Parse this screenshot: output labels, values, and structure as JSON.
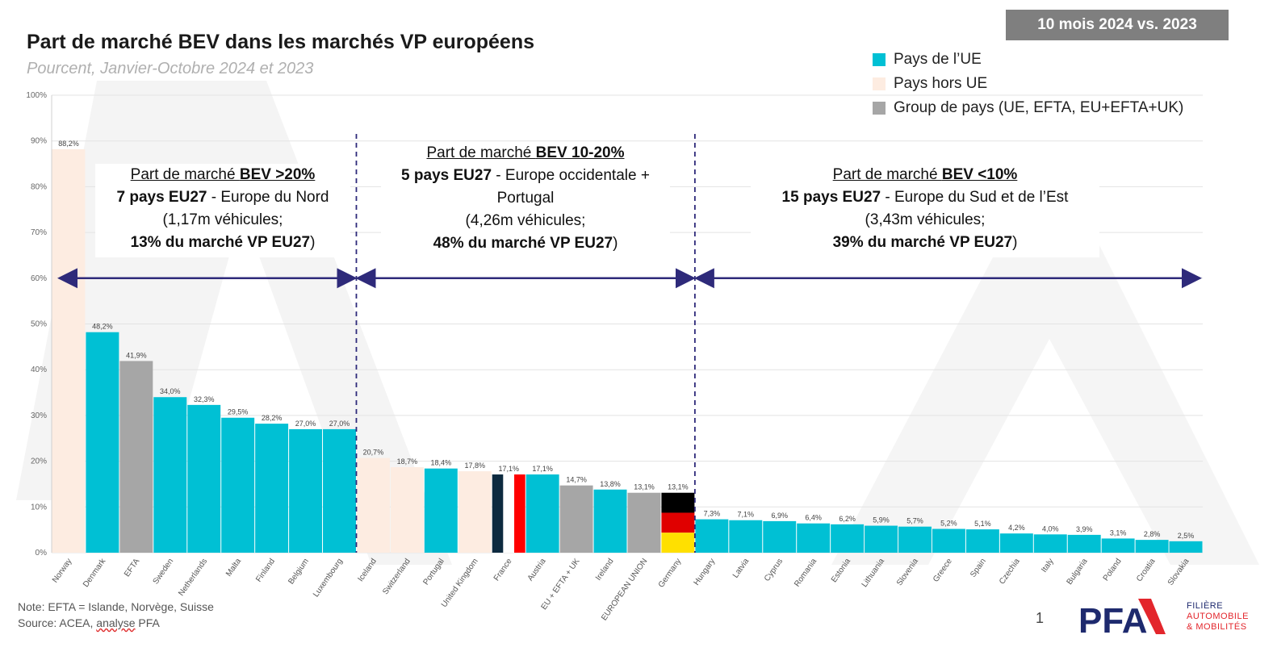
{
  "title": "Part de marché BEV dans les marchés VP européens",
  "subtitle": "Pourcent, Janvier-Octobre 2024 et 2023",
  "period_badge": "10 mois 2024 vs. 2023",
  "legend": [
    {
      "label": "Pays de l’UE",
      "color": "#00c0d4"
    },
    {
      "label": "Pays hors UE",
      "color": "#fdece1"
    },
    {
      "label": "Group de pays (UE, EFTA, EU+EFTA+UK)",
      "color": "#a6a6a6"
    }
  ],
  "zones": [
    {
      "heading_prefix": "Part de marché ",
      "heading_bold": "BEV >20%",
      "line2_bold": "7 pays EU27",
      "line2_rest": " - Europe du Nord",
      "line3": "(1,17m véhicules;",
      "line4_bold": "13% du marché VP EU27",
      "line4_rest": ")"
    },
    {
      "heading_prefix": "Part de marché ",
      "heading_bold": "BEV 10-20%",
      "line2_bold": "5 pays EU27",
      "line2_rest": " - Europe occidentale +",
      "line2b": "Portugal",
      "line3": "(4,26m véhicules;",
      "line4_bold": "48% du marché VP EU27",
      "line4_rest": ")"
    },
    {
      "heading_prefix": "Part de marché ",
      "heading_bold": "BEV <10%",
      "line2_bold": "15 pays EU27",
      "line2_rest": " - Europe du Sud et de l’Est",
      "line3": "(3,43m véhicules;",
      "line4_bold": "39% du marché VP EU27",
      "line4_rest": ")"
    }
  ],
  "colors": {
    "eu": "#00c0d4",
    "non_eu": "#fdece1",
    "group": "#a6a6a6",
    "arrow": "#2e2a7a",
    "grid": "#e3e3e3",
    "axis_text": "#666666",
    "france_blue": "#0d2a3f",
    "france_red": "#ff0000",
    "germany_black": "#000000",
    "germany_red": "#e00000",
    "germany_gold": "#ffe000"
  },
  "chart_data": {
    "type": "bar",
    "categories": [
      "Norway",
      "Denmark",
      "EFTA",
      "Sweden",
      "Netherlands",
      "Malta",
      "Finland",
      "Belgium",
      "Luxembourg",
      "Iceland",
      "Switzerland",
      "Portugal",
      "United Kingdom",
      "France",
      "Austria",
      "EU + EFTA + UK",
      "Ireland",
      "EUROPEAN UNION",
      "Germany",
      "Hungary",
      "Latvia",
      "Cyprus",
      "Romania",
      "Estonia",
      "Lithuania",
      "Slovenia",
      "Greece",
      "Spain",
      "Czechia",
      "Italy",
      "Bulgaria",
      "Poland",
      "Croatia",
      "Slovakia"
    ],
    "values": [
      88.2,
      48.2,
      41.9,
      34.0,
      32.3,
      29.5,
      28.2,
      27.0,
      27.0,
      20.7,
      18.7,
      18.4,
      17.8,
      17.1,
      17.1,
      14.7,
      13.8,
      13.1,
      13.1,
      7.3,
      7.1,
      6.9,
      6.4,
      6.2,
      5.9,
      5.7,
      5.2,
      5.1,
      4.2,
      4.0,
      3.9,
      3.1,
      2.8,
      2.5
    ],
    "value_labels": [
      "88,2%",
      "48,2%",
      "41,9%",
      "34,0%",
      "32,3%",
      "29,5%",
      "28,2%",
      "27,0%",
      "27,0%",
      "20,7%",
      "18,7%",
      "18,4%",
      "17,8%",
      "17,1%",
      "17,1%",
      "14,7%",
      "13,8%",
      "13,1%",
      "13,1%",
      "7,3%",
      "7,1%",
      "6,9%",
      "6,4%",
      "6,2%",
      "5,9%",
      "5,7%",
      "5,2%",
      "5,1%",
      "4,2%",
      "4,0%",
      "3,9%",
      "3,1%",
      "2,8%",
      "2,5%"
    ],
    "groups": [
      "non_eu",
      "eu",
      "group",
      "eu",
      "eu",
      "eu",
      "eu",
      "eu",
      "eu",
      "non_eu",
      "non_eu",
      "eu",
      "non_eu",
      "flag_fr",
      "eu",
      "group",
      "eu",
      "group",
      "flag_de",
      "eu",
      "eu",
      "eu",
      "eu",
      "eu",
      "eu",
      "eu",
      "eu",
      "eu",
      "eu",
      "eu",
      "eu",
      "eu",
      "eu",
      "eu"
    ],
    "ylim": [
      0,
      100
    ],
    "yticks": [
      0,
      10,
      20,
      30,
      40,
      50,
      60,
      70,
      80,
      90,
      100
    ],
    "ytick_labels": [
      "0%",
      "10%",
      "20%",
      "30%",
      "40%",
      "50%",
      "60%",
      "70%",
      "80%",
      "90%",
      "100%"
    ],
    "grid": true,
    "legend_position": "top-right",
    "zone_boundaries_after_index": [
      8,
      18
    ]
  },
  "footnote": {
    "note": "Note: EFTA = Islande, Norvège, Suisse",
    "source_prefix": "Source: ACEA, ",
    "source_link": "analyse",
    "source_suffix": " PFA"
  },
  "page_number": "1",
  "logo": {
    "text": "PFA",
    "tag_line1": "FILIÈRE",
    "tag_line2": "AUTOMOBILE",
    "tag_line3": "& MOBILITÉS"
  }
}
